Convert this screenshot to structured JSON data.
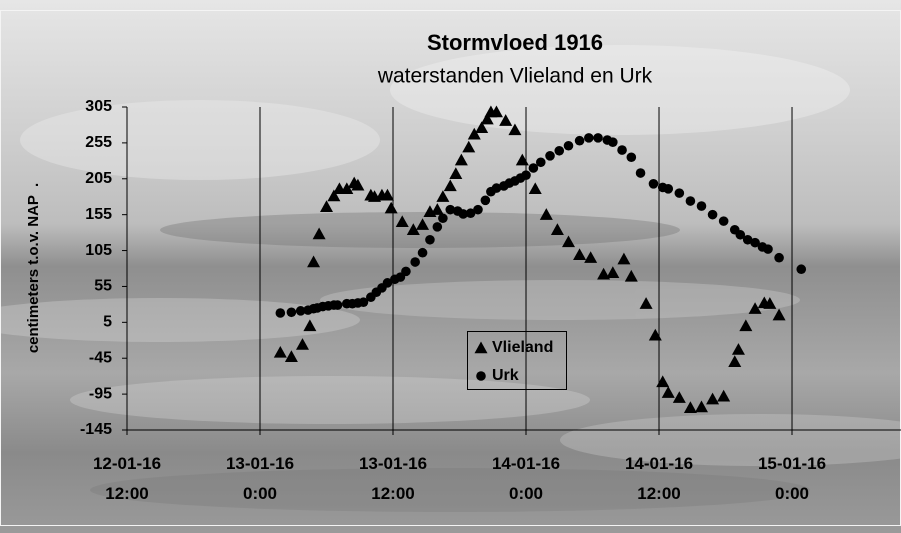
{
  "chart_data": {
    "type": "scatter",
    "title": "Stormvloed 1916",
    "subtitle": "waterstanden Vlieland en Urk",
    "y_label": "centimeters t.o.v. NAP  .",
    "xlim": [
      "12-01-16 12:00",
      "15-01-16 9:50"
    ],
    "xticks": [
      "12-01-16 12:00",
      "13-01-16 0:00",
      "13-01-16 12:00",
      "14-01-16 0:00",
      "14-01-16 12:00",
      "15-01-16 0:00"
    ],
    "ylim": [
      -145,
      305
    ],
    "yticks": [
      305,
      255,
      205,
      155,
      105,
      55,
      5,
      -45,
      -95,
      -145
    ],
    "grid": "x",
    "series": [
      {
        "name": "Vlieland",
        "marker": "triangle",
        "color": "#000000",
        "x": [
          "13-01-16 1:50",
          "13-01-16 2:50",
          "13-01-16 3:50",
          "13-01-16 4:30",
          "13-01-16 4:50",
          "13-01-16 5:20",
          "13-01-16 6:00",
          "13-01-16 6:40",
          "13-01-16 7:10",
          "13-01-16 7:50",
          "13-01-16 8:30",
          "13-01-16 8:50",
          "13-01-16 10:00",
          "13-01-16 10:20",
          "13-01-16 11:00",
          "13-01-16 11:30",
          "13-01-16 11:50",
          "13-01-16 12:50",
          "13-01-16 13:50",
          "13-01-16 14:40",
          "13-01-16 15:20",
          "13-01-16 16:00",
          "13-01-16 16:30",
          "13-01-16 17:10",
          "13-01-16 17:40",
          "13-01-16 18:10",
          "13-01-16 18:50",
          "13-01-16 19:20",
          "13-01-16 20:00",
          "13-01-16 20:30",
          "13-01-16 20:50",
          "13-01-16 21:20",
          "13-01-16 22:10",
          "13-01-16 23:00",
          "13-01-16 23:40",
          "14-01-16 0:50",
          "14-01-16 1:50",
          "14-01-16 2:50",
          "14-01-16 3:50",
          "14-01-16 4:50",
          "14-01-16 5:50",
          "14-01-16 7:00",
          "14-01-16 7:50",
          "14-01-16 8:50",
          "14-01-16 9:30",
          "14-01-16 10:50",
          "14-01-16 11:40",
          "14-01-16 12:20",
          "14-01-16 12:50",
          "14-01-16 13:50",
          "14-01-16 14:50",
          "14-01-16 15:50",
          "14-01-16 16:50",
          "14-01-16 17:50",
          "14-01-16 18:50",
          "14-01-16 19:10",
          "14-01-16 19:50",
          "14-01-16 20:40",
          "14-01-16 21:30",
          "14-01-16 22:00",
          "14-01-16 22:50"
        ],
        "values": [
          -37,
          -43,
          -26,
          0,
          89,
          128,
          166,
          181,
          191,
          191,
          199,
          196,
          182,
          180,
          182,
          182,
          164,
          145,
          134,
          141,
          159,
          162,
          180,
          195,
          212,
          231,
          249,
          267,
          276,
          288,
          298,
          298,
          286,
          273,
          231,
          191,
          155,
          134,
          117,
          99,
          95,
          72,
          74,
          93,
          69,
          31,
          -13,
          -78,
          -93,
          -100,
          -114,
          -113,
          -102,
          -98,
          -50,
          -33,
          0,
          24,
          32,
          31,
          15
        ]
      },
      {
        "name": "Urk",
        "marker": "circle",
        "color": "#000000",
        "x": [
          "13-01-16 1:50",
          "13-01-16 2:50",
          "13-01-16 3:40",
          "13-01-16 4:20",
          "13-01-16 4:50",
          "13-01-16 5:10",
          "13-01-16 5:40",
          "13-01-16 6:10",
          "13-01-16 6:40",
          "13-01-16 7:00",
          "13-01-16 7:50",
          "13-01-16 8:20",
          "13-01-16 8:50",
          "13-01-16 9:20",
          "13-01-16 10:00",
          "13-01-16 10:30",
          "13-01-16 11:00",
          "13-01-16 11:30",
          "13-01-16 12:10",
          "13-01-16 12:40",
          "13-01-16 13:10",
          "13-01-16 14:00",
          "13-01-16 14:40",
          "13-01-16 15:20",
          "13-01-16 16:00",
          "13-01-16 16:30",
          "13-01-16 17:10",
          "13-01-16 17:50",
          "13-01-16 18:20",
          "13-01-16 19:00",
          "13-01-16 19:40",
          "13-01-16 20:20",
          "13-01-16 20:50",
          "13-01-16 21:20",
          "13-01-16 22:00",
          "13-01-16 22:30",
          "13-01-16 23:00",
          "13-01-16 23:30",
          "14-01-16 0:00",
          "14-01-16 0:40",
          "14-01-16 1:20",
          "14-01-16 2:10",
          "14-01-16 3:00",
          "14-01-16 3:50",
          "14-01-16 4:50",
          "14-01-16 5:40",
          "14-01-16 6:30",
          "14-01-16 7:20",
          "14-01-16 7:50",
          "14-01-16 8:40",
          "14-01-16 9:30",
          "14-01-16 10:20",
          "14-01-16 11:30",
          "14-01-16 12:20",
          "14-01-16 12:50",
          "14-01-16 13:50",
          "14-01-16 14:50",
          "14-01-16 15:50",
          "14-01-16 16:50",
          "14-01-16 17:50",
          "14-01-16 18:50",
          "14-01-16 19:20",
          "14-01-16 20:00",
          "14-01-16 20:40",
          "14-01-16 21:20",
          "14-01-16 21:50",
          "14-01-16 22:50",
          "15-01-16 0:50"
        ],
        "values": [
          18,
          19,
          21,
          22,
          24,
          25,
          27,
          28,
          29,
          29,
          31,
          31,
          32,
          33,
          40,
          47,
          53,
          60,
          65,
          68,
          76,
          89,
          102,
          120,
          138,
          150,
          162,
          160,
          156,
          157,
          162,
          175,
          187,
          192,
          195,
          199,
          202,
          206,
          210,
          220,
          228,
          237,
          244,
          251,
          258,
          262,
          262,
          259,
          256,
          245,
          235,
          213,
          198,
          193,
          191,
          185,
          174,
          167,
          155,
          146,
          134,
          127,
          120,
          116,
          110,
          107,
          95,
          79
        ]
      }
    ]
  }
}
